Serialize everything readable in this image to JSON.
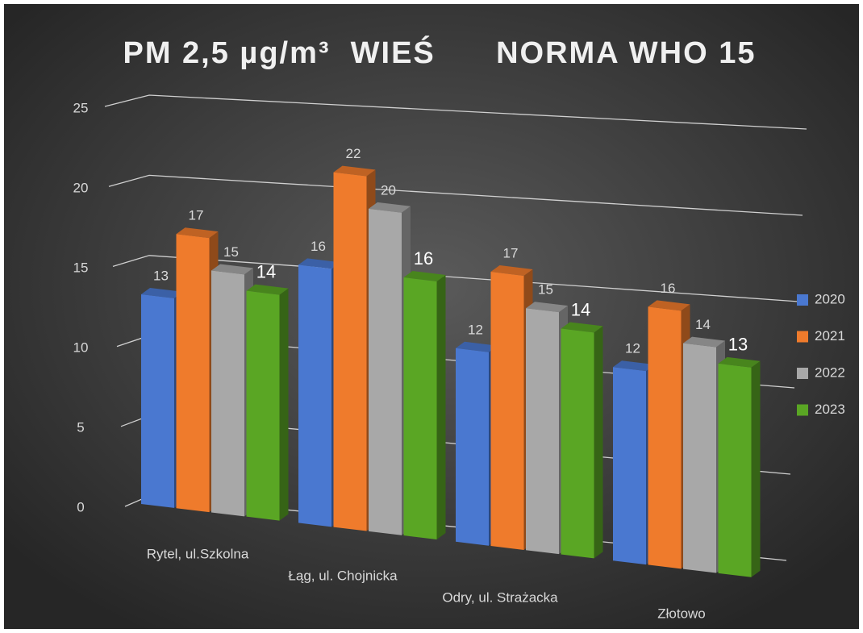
{
  "chart_data": {
    "type": "bar3d",
    "title": "PM 2,5 µg/m³  WIEŚ      NORMA WHO 15",
    "categories": [
      "Rytel, ul.Szkolna",
      "Łąg, ul. Chojnicka",
      "Odry, ul. Strażacka",
      "Złotowo"
    ],
    "series": [
      {
        "name": "2020",
        "color": "#4a78d0",
        "values": [
          13,
          16,
          12,
          12
        ]
      },
      {
        "name": "2021",
        "color": "#ef7b2c",
        "values": [
          17,
          22,
          17,
          16
        ]
      },
      {
        "name": "2022",
        "color": "#a8a8a8",
        "values": [
          15,
          20,
          15,
          14
        ]
      },
      {
        "name": "2023",
        "color": "#5aa624",
        "values": [
          14,
          16,
          14,
          13
        ]
      }
    ],
    "ylim": [
      0,
      25
    ],
    "yticks": [
      0,
      5,
      10,
      15,
      20,
      25
    ],
    "grid": true,
    "legend": "right"
  }
}
